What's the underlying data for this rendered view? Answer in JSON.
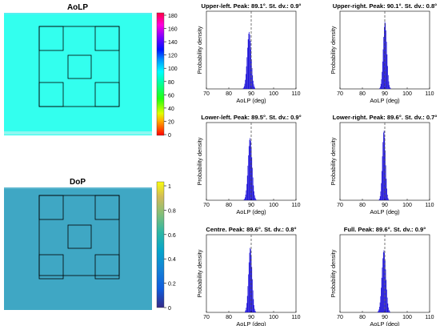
{
  "images": {
    "aolp": {
      "title": "AoLP",
      "colorbar_ticks": [
        "180",
        "160",
        "140",
        "120",
        "100",
        "80",
        "60",
        "40",
        "20",
        "0"
      ],
      "colorbar_range": [
        0,
        180
      ],
      "colorbar_colormap": "hsv",
      "fill_color": "#33ffee"
    },
    "dop": {
      "title": "DoP",
      "colorbar_ticks": [
        "1",
        "0.8",
        "0.6",
        "0.4",
        "0.2",
        "0"
      ],
      "colorbar_range": [
        0,
        1
      ],
      "colorbar_colormap": "parula",
      "fill_color": "#3fa7c4"
    }
  },
  "chart_data": [
    {
      "type": "histogram",
      "title": "Upper-left. Peak: 89.1°. St. dv.: 0.9°",
      "peak": 89.1,
      "std": 0.9,
      "max_density": 0.22,
      "xlabel": "AoLP (deg)",
      "ylabel": "Probability density",
      "xlim": [
        70,
        110
      ],
      "xticks": [
        "70",
        "80",
        "90",
        "100",
        "110"
      ],
      "reference_line": 90
    },
    {
      "type": "histogram",
      "title": "Upper-right. Peak: 90.1°. St. dv.: 0.8°",
      "peak": 90.1,
      "std": 0.8,
      "max_density": 0.26,
      "xlabel": "AoLP (deg)",
      "ylabel": "Probability density",
      "xlim": [
        70,
        110
      ],
      "xticks": [
        "70",
        "80",
        "90",
        "100",
        "110"
      ],
      "reference_line": 90
    },
    {
      "type": "histogram",
      "title": "Lower-left. Peak: 89.5°. St. dv.: 0.9°",
      "peak": 89.5,
      "std": 0.9,
      "max_density": 0.24,
      "xlabel": "AoLP (deg)",
      "ylabel": "Probability density",
      "xlim": [
        70,
        110
      ],
      "xticks": [
        "70",
        "80",
        "90",
        "100",
        "110"
      ],
      "reference_line": 90
    },
    {
      "type": "histogram",
      "title": "Lower-right. Peak: 89.6°. St. dv.: 0.7°",
      "peak": 89.6,
      "std": 0.7,
      "max_density": 0.27,
      "xlabel": "AoLP (deg)",
      "ylabel": "Probability density",
      "xlim": [
        70,
        110
      ],
      "xticks": [
        "70",
        "80",
        "90",
        "100",
        "110"
      ],
      "reference_line": 90
    },
    {
      "type": "histogram",
      "title": "Centre. Peak: 89.6°. St. dv.: 0.8°",
      "peak": 89.6,
      "std": 0.8,
      "max_density": 0.25,
      "xlabel": "AoLP (deg)",
      "ylabel": "Probability density",
      "xlim": [
        70,
        110
      ],
      "xticks": [
        "70",
        "80",
        "90",
        "100",
        "110"
      ],
      "reference_line": 90
    },
    {
      "type": "histogram",
      "title": "Full. Peak: 89.6°. St. dv.: 0.9°",
      "peak": 89.6,
      "std": 0.9,
      "max_density": 0.24,
      "xlabel": "AoLP (deg)",
      "ylabel": "Probability density",
      "xlim": [
        70,
        110
      ],
      "xticks": [
        "70",
        "80",
        "90",
        "100",
        "110"
      ],
      "reference_line": 90
    }
  ],
  "colors": {
    "bar": "#1a0fd6",
    "dashed_line": "#555555"
  }
}
